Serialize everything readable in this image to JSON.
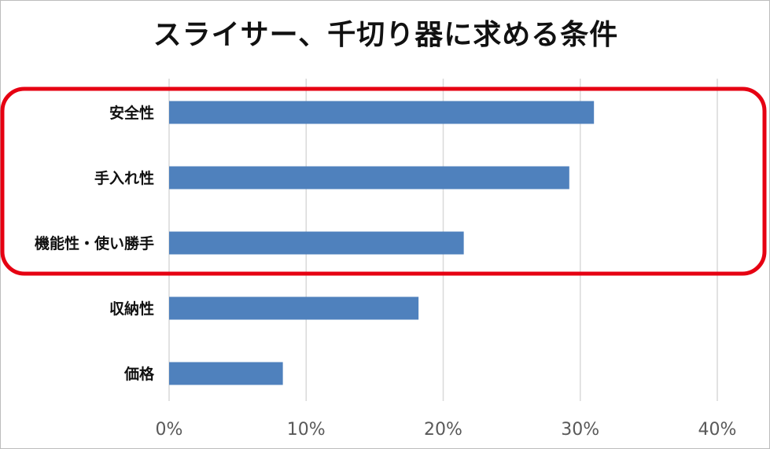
{
  "chart_data": {
    "type": "bar",
    "orientation": "horizontal",
    "title": "スライサー、千切り器に求める条件",
    "categories": [
      "安全性",
      "手入れ性",
      "機能性・使い勝手",
      "収納性",
      "価格"
    ],
    "values": [
      31,
      29.2,
      21.5,
      18.2,
      8.3
    ],
    "xlim": [
      0,
      40
    ],
    "xticks": [
      "0%",
      "10%",
      "20%",
      "30%",
      "40%"
    ],
    "xtick_values": [
      0,
      10,
      20,
      30,
      40
    ],
    "bar_color": "#4f81bd",
    "grid": true,
    "highlight": {
      "categories": [
        "安全性",
        "手入れ性",
        "機能性・使い勝手"
      ],
      "color": "#e60012"
    }
  }
}
